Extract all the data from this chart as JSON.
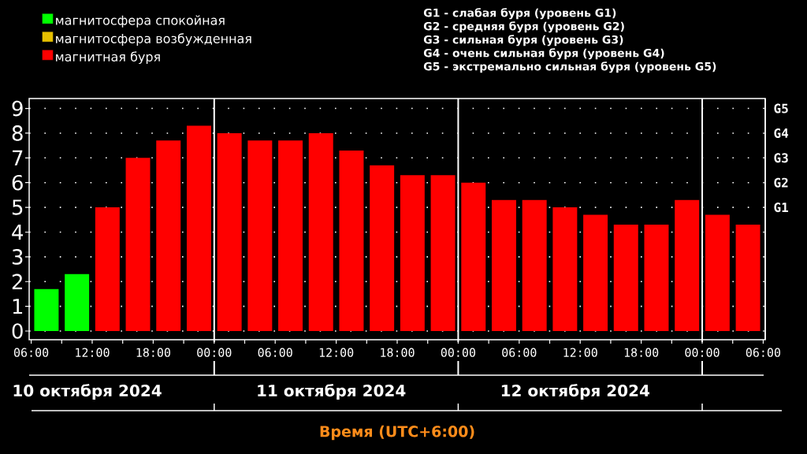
{
  "chart_data": {
    "type": "bar",
    "xlabel": "Время (UTC+6:00)",
    "x": [
      "2024-10-10T07:30",
      "2024-10-10T10:30",
      "2024-10-10T13:30",
      "2024-10-10T16:30",
      "2024-10-10T19:30",
      "2024-10-10T22:30",
      "2024-10-11T01:30",
      "2024-10-11T04:30",
      "2024-10-11T07:30",
      "2024-10-11T10:30",
      "2024-10-11T13:30",
      "2024-10-11T16:30",
      "2024-10-11T19:30",
      "2024-10-11T22:30",
      "2024-10-12T01:30",
      "2024-10-12T04:30",
      "2024-10-12T07:30",
      "2024-10-12T10:30",
      "2024-10-12T13:30",
      "2024-10-12T16:30",
      "2024-10-12T19:30",
      "2024-10-12T22:30",
      "2024-10-13T01:30",
      "2024-10-13T04:30"
    ],
    "series": [
      {
        "name": "магнитосфера спокойная",
        "color": "#00ff00",
        "values": [
          1.7,
          2.3,
          null,
          null,
          null,
          null,
          null,
          null,
          null,
          null,
          null,
          null,
          null,
          null,
          null,
          null,
          null,
          null,
          null,
          null,
          null,
          null,
          null,
          null
        ]
      },
      {
        "name": "магнитосфера возбужденная",
        "color": "#e6c000",
        "values": [
          null,
          null,
          null,
          null,
          null,
          null,
          null,
          null,
          null,
          null,
          null,
          null,
          null,
          null,
          null,
          null,
          null,
          null,
          null,
          null,
          null,
          null,
          null,
          null
        ]
      },
      {
        "name": "магнитная буря",
        "color": "#ff0000",
        "values": [
          null,
          null,
          5,
          7,
          7.7,
          8.3,
          8,
          7.7,
          7.7,
          8,
          7.3,
          6.7,
          6.3,
          6.3,
          6,
          5.3,
          5.3,
          5,
          4.7,
          4.3,
          4.3,
          5.3,
          4.7,
          4.3
        ]
      }
    ],
    "xlim": [
      "2024-10-10T05:48",
      "2024-10-13T06:12"
    ],
    "xticks": [
      {
        "value": "2024-10-10T06:00",
        "label": "06:00"
      },
      {
        "value": "2024-10-10T09:00",
        "label": null
      },
      {
        "value": "2024-10-10T12:00",
        "label": "12:00"
      },
      {
        "value": "2024-10-10T15:00",
        "label": null
      },
      {
        "value": "2024-10-10T18:00",
        "label": "18:00"
      },
      {
        "value": "2024-10-10T21:00",
        "label": null
      },
      {
        "value": "2024-10-11T00:00",
        "label": "00:00"
      },
      {
        "value": "2024-10-11T03:00",
        "label": null
      },
      {
        "value": "2024-10-11T06:00",
        "label": "06:00"
      },
      {
        "value": "2024-10-11T09:00",
        "label": null
      },
      {
        "value": "2024-10-11T12:00",
        "label": "12:00"
      },
      {
        "value": "2024-10-11T15:00",
        "label": null
      },
      {
        "value": "2024-10-11T18:00",
        "label": "18:00"
      },
      {
        "value": "2024-10-11T21:00",
        "label": null
      },
      {
        "value": "2024-10-12T00:00",
        "label": "00:00"
      },
      {
        "value": "2024-10-12T03:00",
        "label": null
      },
      {
        "value": "2024-10-12T06:00",
        "label": "06:00"
      },
      {
        "value": "2024-10-12T09:00",
        "label": null
      },
      {
        "value": "2024-10-12T12:00",
        "label": "12:00"
      },
      {
        "value": "2024-10-12T15:00",
        "label": null
      },
      {
        "value": "2024-10-12T18:00",
        "label": "18:00"
      },
      {
        "value": "2024-10-12T21:00",
        "label": null
      },
      {
        "value": "2024-10-13T00:00",
        "label": "00:00"
      },
      {
        "value": "2024-10-13T03:00",
        "label": null
      },
      {
        "value": "2024-10-13T06:00",
        "label": "06:00"
      }
    ],
    "ylim": [
      -0.35,
      9.4
    ],
    "yticks": [
      0,
      1,
      2,
      3,
      4,
      5,
      6,
      7,
      8,
      9
    ],
    "ref_lines": [
      {
        "axis": "x",
        "value": "2024-10-11T00:00",
        "color": "#ffffff",
        "line_style": "solid"
      },
      {
        "axis": "x",
        "value": "2024-10-12T00:00",
        "color": "#ffffff",
        "line_style": "solid"
      },
      {
        "axis": "x",
        "value": "2024-10-13T00:00",
        "color": "#ffffff",
        "line_style": "solid"
      }
    ],
    "annotations": [
      "10 октября 2024",
      "11 октября 2024",
      "12 октября 2024",
      "G1 - слабая буря (уровень G1)",
      "G2 - средняя буря (уровень G2)",
      "G3 - сильная буря (уровень G3)",
      "G4 - очень сильная буря (уровень G4)",
      "G5 - экстремально сильная буря (уровень G5)",
      "G1",
      "G2",
      "G3",
      "G4",
      "G5"
    ],
    "grid": "y",
    "legend": "top left"
  }
}
